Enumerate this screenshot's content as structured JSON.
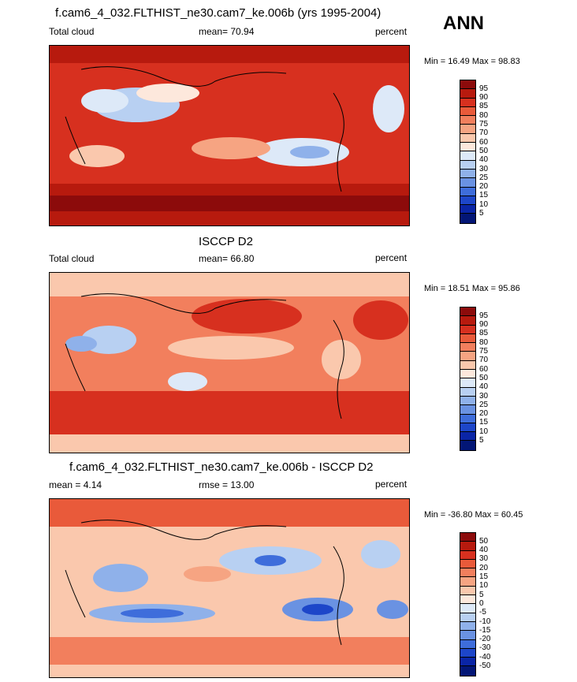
{
  "season": "ANN",
  "panels": [
    {
      "title": "f.cam6_4_032.FLTHIST_ne30.cam7_ke.006b (yrs 1995-2004)",
      "left_label": "Total cloud",
      "stat_label": "mean=  70.94",
      "units": "percent",
      "minmax": "Min = 16.49 Max = 98.83",
      "levels": [
        "95",
        "90",
        "85",
        "80",
        "75",
        "70",
        "60",
        "50",
        "40",
        "30",
        "25",
        "20",
        "15",
        "10",
        "5"
      ],
      "colors": [
        "#8c0b0b",
        "#b71a0e",
        "#d7301f",
        "#e95a3a",
        "#f27f5d",
        "#f6a482",
        "#fac8ad",
        "#fde8dc",
        "#dde9f8",
        "#b8d0f2",
        "#8fb1ea",
        "#6a92e2",
        "#3e6ddb",
        "#1d46c9",
        "#0a25a6",
        "#031676"
      ]
    },
    {
      "title": "ISCCP D2",
      "left_label": "Total cloud",
      "stat_label": "mean=  66.80",
      "units": "percent",
      "minmax": "Min = 18.51 Max = 95.86",
      "levels": [
        "95",
        "90",
        "85",
        "80",
        "75",
        "70",
        "60",
        "50",
        "40",
        "30",
        "25",
        "20",
        "15",
        "10",
        "5"
      ],
      "colors": [
        "#8c0b0b",
        "#b71a0e",
        "#d7301f",
        "#e95a3a",
        "#f27f5d",
        "#f6a482",
        "#fac8ad",
        "#fde8dc",
        "#dde9f8",
        "#b8d0f2",
        "#8fb1ea",
        "#6a92e2",
        "#3e6ddb",
        "#1d46c9",
        "#0a25a6",
        "#031676"
      ]
    },
    {
      "title": "f.cam6_4_032.FLTHIST_ne30.cam7_ke.006b - ISCCP D2",
      "left_label": "mean =   4.14",
      "stat_label": "rmse =  13.00",
      "units": "percent",
      "minmax": "Min = -36.80 Max = 60.45",
      "levels": [
        "50",
        "40",
        "30",
        "20",
        "15",
        "10",
        "5",
        "0",
        "-5",
        "-10",
        "-15",
        "-20",
        "-30",
        "-40",
        "-50"
      ],
      "colors": [
        "#8c0b0b",
        "#b71a0e",
        "#d7301f",
        "#e95a3a",
        "#f27f5d",
        "#f6a482",
        "#fac8ad",
        "#fde8dc",
        "#dde9f8",
        "#b8d0f2",
        "#8fb1ea",
        "#6a92e2",
        "#3e6ddb",
        "#1d46c9",
        "#0a25a6",
        "#031676"
      ]
    }
  ]
}
